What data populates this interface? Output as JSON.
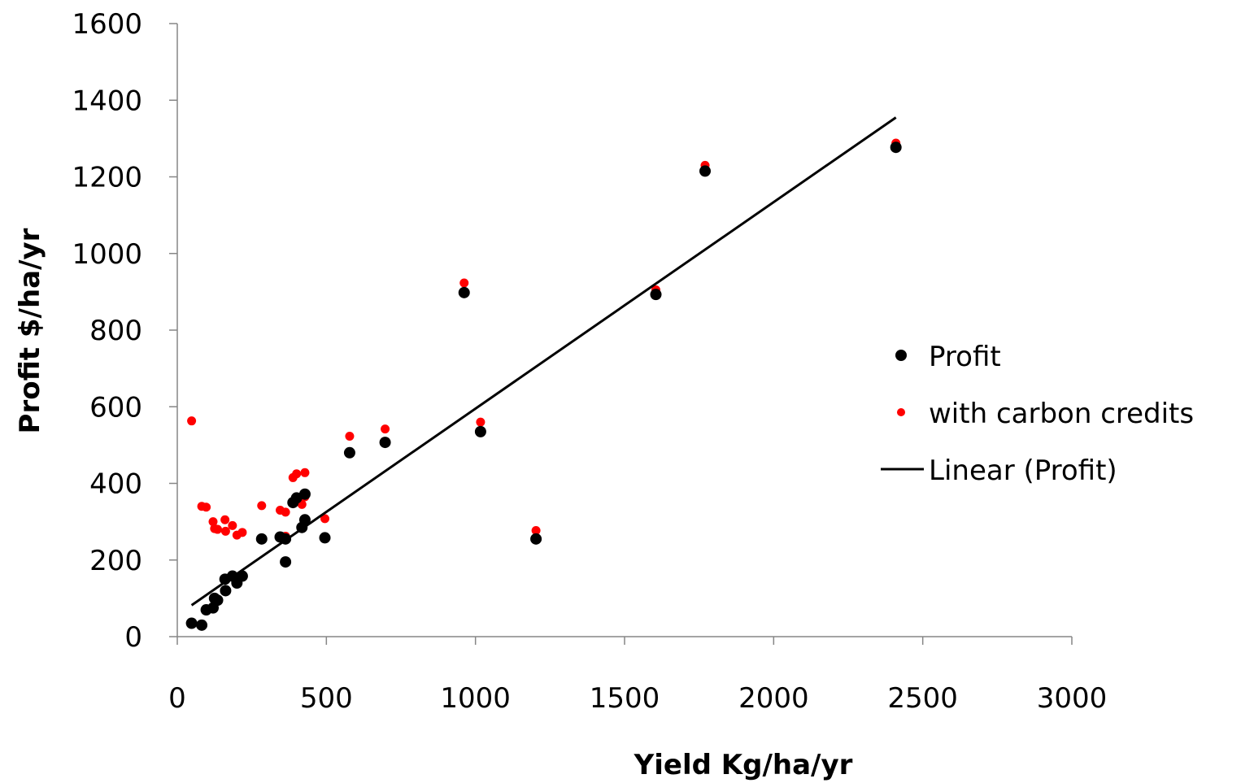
{
  "chart_data": {
    "type": "scatter",
    "title": "",
    "xlabel": "Yield Kg/ha/yr",
    "ylabel": "Profit $/ha/yr",
    "xlim": [
      0,
      3000
    ],
    "ylim": [
      0,
      1600
    ],
    "x_ticks": [
      0,
      500,
      1000,
      1500,
      2000,
      2500,
      3000
    ],
    "y_ticks": [
      0,
      200,
      400,
      600,
      800,
      1000,
      1200,
      1400,
      1600
    ],
    "grid": false,
    "legend_position": "right",
    "series": [
      {
        "name": "Profit",
        "color": "#000000",
        "marker": "circle",
        "points": [
          [
            48,
            35
          ],
          [
            82,
            30
          ],
          [
            97,
            70
          ],
          [
            120,
            75
          ],
          [
            125,
            100
          ],
          [
            135,
            95
          ],
          [
            160,
            150
          ],
          [
            162,
            120
          ],
          [
            185,
            158
          ],
          [
            200,
            140
          ],
          [
            218,
            158
          ],
          [
            283,
            255
          ],
          [
            345,
            260
          ],
          [
            363,
            255
          ],
          [
            363,
            195
          ],
          [
            388,
            350
          ],
          [
            400,
            362
          ],
          [
            418,
            285
          ],
          [
            428,
            372
          ],
          [
            428,
            305
          ],
          [
            495,
            258
          ],
          [
            578,
            480
          ],
          [
            697,
            507
          ],
          [
            962,
            898
          ],
          [
            1017,
            535
          ],
          [
            1203,
            255
          ],
          [
            1605,
            893
          ],
          [
            1770,
            1215
          ],
          [
            2410,
            1277
          ]
        ]
      },
      {
        "name": "with carbon credits",
        "color": "#ff0000",
        "marker": "circle",
        "points": [
          [
            48,
            563
          ],
          [
            82,
            340
          ],
          [
            97,
            338
          ],
          [
            120,
            300
          ],
          [
            125,
            282
          ],
          [
            135,
            280
          ],
          [
            160,
            305
          ],
          [
            162,
            275
          ],
          [
            185,
            290
          ],
          [
            200,
            265
          ],
          [
            218,
            272
          ],
          [
            283,
            342
          ],
          [
            345,
            330
          ],
          [
            363,
            325
          ],
          [
            363,
            262
          ],
          [
            388,
            415
          ],
          [
            400,
            425
          ],
          [
            418,
            345
          ],
          [
            428,
            428
          ],
          [
            428,
            365
          ],
          [
            495,
            308
          ],
          [
            578,
            523
          ],
          [
            697,
            542
          ],
          [
            962,
            923
          ],
          [
            1017,
            560
          ],
          [
            1203,
            277
          ],
          [
            1605,
            905
          ],
          [
            1770,
            1230
          ],
          [
            2410,
            1288
          ]
        ]
      },
      {
        "name": "Linear (Profit)",
        "color": "#000000",
        "kind": "trendline",
        "points": [
          [
            48,
            82
          ],
          [
            2410,
            1355
          ]
        ]
      }
    ]
  }
}
